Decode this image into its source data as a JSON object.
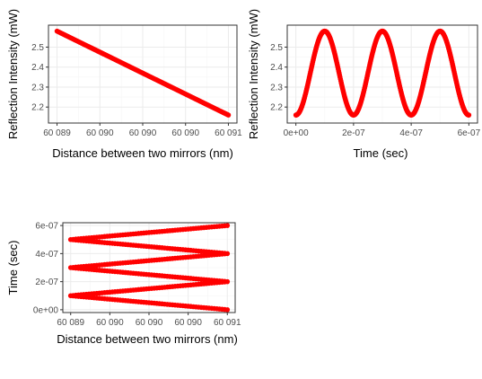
{
  "chart_data": [
    {
      "id": "top-left",
      "type": "scatter",
      "xlabel": "Distance between two mirrors (nm)",
      "ylabel": "Reflection Intensity (mW)",
      "x_ticks": [
        60089.0,
        60089.5,
        60090.0,
        60090.5,
        60091.0
      ],
      "x_tick_labels": [
        "60 089",
        "60 090",
        "60 090",
        "60 090",
        "60 091"
      ],
      "y_ticks": [
        2.2,
        2.3,
        2.4,
        2.5
      ],
      "y_tick_labels": [
        "2.2",
        "2.3",
        "2.4",
        "2.5"
      ],
      "xlim": [
        60088.9,
        60091.1
      ],
      "ylim": [
        2.12,
        2.61
      ],
      "series": [
        {
          "x": [
            60089.0,
            60091.0
          ],
          "y": [
            2.58,
            2.16
          ],
          "color": "#ff0000"
        }
      ]
    },
    {
      "id": "top-right",
      "type": "scatter",
      "xlabel": "Time (sec)",
      "ylabel": "Reflection Intensity (mW)",
      "x_ticks": [
        0,
        2e-07,
        4e-07,
        6e-07
      ],
      "x_tick_labels": [
        "0e+00",
        "2e-07",
        "4e-07",
        "6e-07"
      ],
      "y_ticks": [
        2.2,
        2.3,
        2.4,
        2.5
      ],
      "y_tick_labels": [
        "2.2",
        "2.3",
        "2.4",
        "2.5"
      ],
      "xlim": [
        -3e-08,
        6.3e-07
      ],
      "ylim": [
        2.12,
        2.61
      ],
      "series": [
        {
          "x_range": [
            0,
            6e-07
          ],
          "y_min": 2.16,
          "y_max": 2.58,
          "period": 2e-07,
          "first_peak": 1e-07,
          "color": "#ff0000"
        }
      ]
    },
    {
      "id": "bottom-left",
      "type": "scatter",
      "xlabel": "Distance between two mirrors (nm)",
      "ylabel": "Time (sec)",
      "x_ticks": [
        60089.0,
        60089.5,
        60090.0,
        60090.5,
        60091.0
      ],
      "x_tick_labels": [
        "60 089",
        "60 090",
        "60 090",
        "60 090",
        "60 091"
      ],
      "y_ticks": [
        0,
        2e-07,
        4e-07,
        6e-07
      ],
      "y_tick_labels": [
        "0e+00",
        "2e-07",
        "4e-07",
        "6e-07"
      ],
      "xlim": [
        60088.9,
        60091.1
      ],
      "ylim": [
        -2e-08,
        6.2e-07
      ],
      "series": [
        {
          "vertices": [
            [
              60091.0,
              0
            ],
            [
              60089.0,
              1e-07
            ],
            [
              60091.0,
              2e-07
            ],
            [
              60089.0,
              3e-07
            ],
            [
              60091.0,
              4e-07
            ],
            [
              60089.0,
              5e-07
            ],
            [
              60091.0,
              6e-07
            ]
          ],
          "color": "#ff0000"
        }
      ]
    }
  ]
}
